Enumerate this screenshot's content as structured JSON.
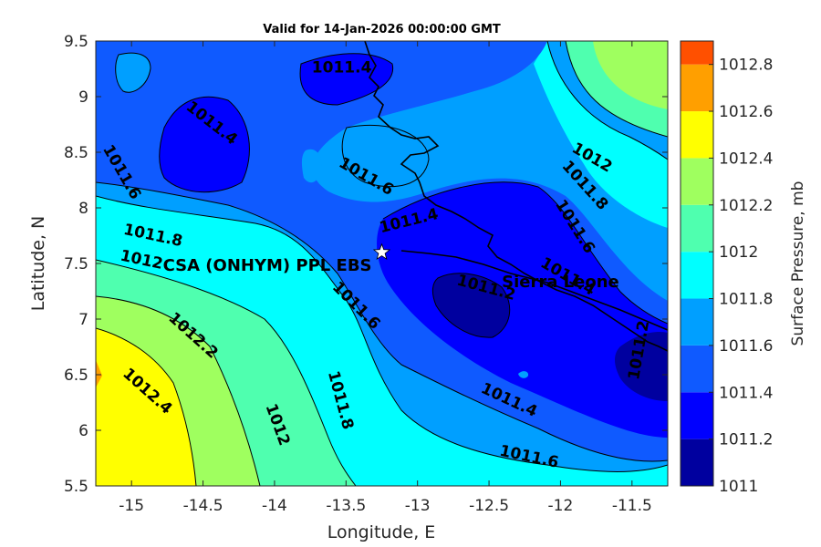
{
  "title": "Valid for 14-Jan-2026 00:00:00 GMT",
  "colors": {
    "levels": [
      "#00009f",
      "#0000ff",
      "#0f5aff",
      "#009fff",
      "#00ffff",
      "#4fffaf",
      "#9fff5f",
      "#ffff00",
      "#ff9f00",
      "#ff5000"
    ],
    "levels_note_values": [
      1011,
      1011.2,
      1011.4,
      1011.6,
      1011.8,
      1012,
      1012.2,
      1012.4,
      1012.6,
      1012.8
    ],
    "background_navy": "#00009f",
    "coast": "#000000"
  },
  "chart_data": {
    "type": "heatmap",
    "title": "Valid for 14-Jan-2026 00:00:00 GMT",
    "xlabel": "Longitude, E",
    "ylabel": "Latitude, N",
    "xlim": [
      -15.25,
      -11.25
    ],
    "ylim": [
      5.5,
      9.5
    ],
    "xticks": [
      "-15",
      "-14.5",
      "-14",
      "-13.5",
      "-13",
      "-12.5",
      "-12",
      "-11.5"
    ],
    "xtick_values": [
      -15,
      -14.5,
      -14,
      -13.5,
      -13,
      -12.5,
      -12,
      -11.5
    ],
    "yticks": [
      "5.5",
      "6",
      "6.5",
      "7",
      "7.5",
      "8",
      "8.5",
      "9",
      "9.5"
    ],
    "ytick_values": [
      5.5,
      6,
      6.5,
      7,
      7.5,
      8,
      8.5,
      9,
      9.5
    ],
    "colorbar": {
      "label": "Surface Pressure, mb",
      "ticks": [
        "1011",
        "1011.2",
        "1011.4",
        "1011.6",
        "1011.8",
        "1012",
        "1012.2",
        "1012.4",
        "1012.6",
        "1012.8"
      ],
      "tick_values": [
        1011,
        1011.2,
        1011.4,
        1011.6,
        1011.8,
        1012,
        1012.2,
        1012.4,
        1012.6,
        1012.8
      ],
      "range": [
        1011,
        1012.9
      ]
    },
    "contour_labels": [
      {
        "text": "1011.4",
        "lon": -13.53,
        "lat": 9.26,
        "angle": 0
      },
      {
        "text": "1011.4",
        "lon": -14.44,
        "lat": 8.76,
        "angle": 38
      },
      {
        "text": "1011.6",
        "lon": -15.07,
        "lat": 8.32,
        "angle": 60
      },
      {
        "text": "1011.8",
        "lon": -14.85,
        "lat": 7.75,
        "angle": 12
      },
      {
        "text": "1012",
        "lon": -14.93,
        "lat": 7.53,
        "angle": 12
      },
      {
        "text": "1012.2",
        "lon": -14.57,
        "lat": 6.85,
        "angle": 42
      },
      {
        "text": "1012.4",
        "lon": -14.89,
        "lat": 6.35,
        "angle": 42
      },
      {
        "text": "1011.6",
        "lon": -13.36,
        "lat": 8.28,
        "angle": 30
      },
      {
        "text": "1011.4",
        "lon": -13.06,
        "lat": 7.88,
        "angle": -14
      },
      {
        "text": "1011.6",
        "lon": -13.43,
        "lat": 7.12,
        "angle": 45
      },
      {
        "text": "1011.8",
        "lon": -13.54,
        "lat": 6.27,
        "angle": 75
      },
      {
        "text": "1012",
        "lon": -13.98,
        "lat": 6.05,
        "angle": 70
      },
      {
        "text": "1011.2",
        "lon": -12.52,
        "lat": 7.28,
        "angle": 15
      },
      {
        "text": "1011.4",
        "lon": -12.36,
        "lat": 6.27,
        "angle": 25
      },
      {
        "text": "1011.6",
        "lon": -12.22,
        "lat": 5.76,
        "angle": 12
      },
      {
        "text": "1012",
        "lon": -11.78,
        "lat": 8.45,
        "angle": 30
      },
      {
        "text": "1011.8",
        "lon": -11.83,
        "lat": 8.2,
        "angle": 48
      },
      {
        "text": "1011.6",
        "lon": -11.9,
        "lat": 7.83,
        "angle": 58
      },
      {
        "text": "1011.4",
        "lon": -11.95,
        "lat": 7.38,
        "angle": 30
      },
      {
        "text": "1011.2",
        "lon": -11.45,
        "lat": 6.72,
        "angle": -80
      }
    ],
    "markers": [
      {
        "name": "CSA (ONHYM) PPL EBS",
        "lon": -13.25,
        "lat": 7.6,
        "symbol": "star"
      },
      {
        "name": "Sierra Leone",
        "lon": -12.0,
        "lat": 7.45,
        "symbol": "none"
      }
    ],
    "grid": false
  }
}
